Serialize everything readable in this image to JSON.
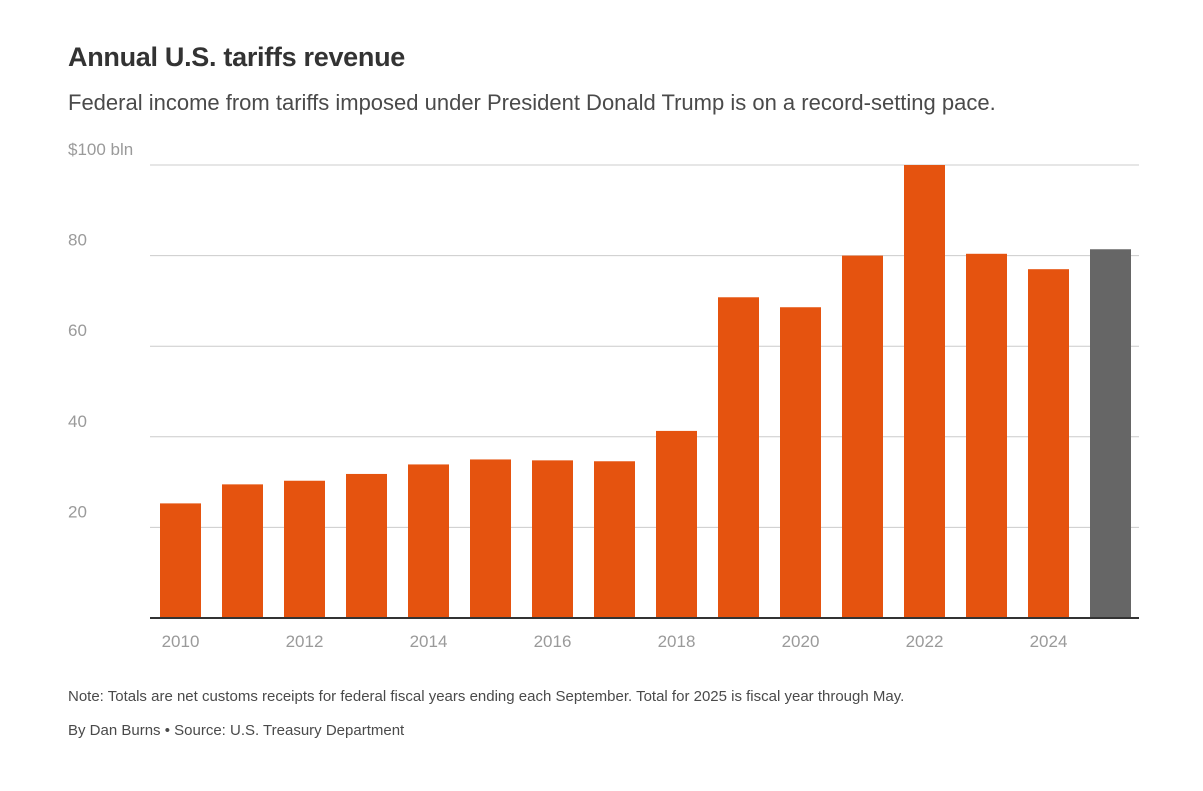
{
  "header": {
    "title": "Annual U.S. tariffs revenue",
    "subtitle": "Federal income from tariffs imposed under President Donald Trump is on a record-setting pace."
  },
  "footer": {
    "note": "Note: Totals are net customs receipts for federal fiscal years ending each September. Total for 2025 is fiscal year through May.",
    "credit": "By Dan Burns • Source: U.S. Treasury Department"
  },
  "colors": {
    "bar": "#e5530f",
    "bar_highlight": "#666666",
    "grid": "#cccccc",
    "axis": "#333333",
    "tick_text": "#9a9a9a"
  },
  "chart_data": {
    "type": "bar",
    "title": "Annual U.S. tariffs revenue",
    "subtitle": "Federal income from tariffs imposed under President Donald Trump is on a record-setting pace.",
    "xlabel": "",
    "ylabel": "",
    "ylim": [
      0,
      100
    ],
    "grid": true,
    "legend": "none",
    "categories": [
      "2010",
      "2011",
      "2012",
      "2013",
      "2014",
      "2015",
      "2016",
      "2017",
      "2018",
      "2019",
      "2020",
      "2021",
      "2022",
      "2023",
      "2024",
      "2025"
    ],
    "values": [
      25.3,
      29.5,
      30.3,
      31.8,
      33.9,
      35.0,
      34.8,
      34.6,
      41.3,
      70.8,
      68.6,
      80.0,
      100.0,
      80.4,
      77.0,
      81.4
    ],
    "highlight_category": "2025",
    "y_ticks": [
      {
        "value": 20,
        "label": "20"
      },
      {
        "value": 40,
        "label": "40"
      },
      {
        "value": 60,
        "label": "60"
      },
      {
        "value": 80,
        "label": "80"
      },
      {
        "value": 100,
        "label": "$100 bln"
      }
    ],
    "x_tick_labels": [
      "2010",
      "2012",
      "2014",
      "2016",
      "2018",
      "2020",
      "2022",
      "2024"
    ]
  }
}
